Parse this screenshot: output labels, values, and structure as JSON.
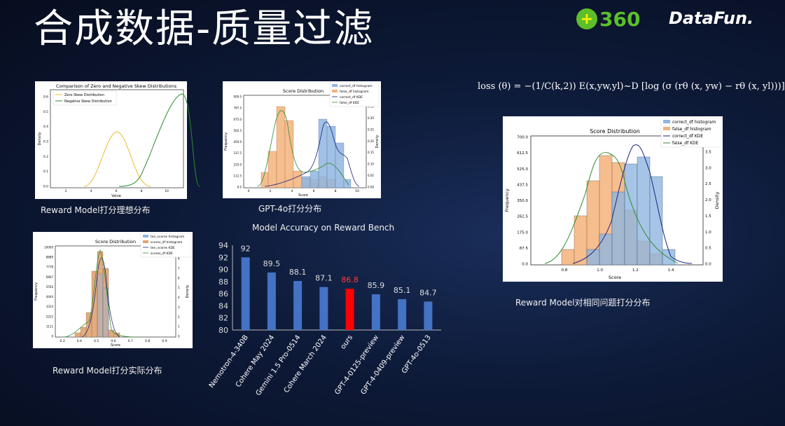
{
  "slide": {
    "title": "合成数据-质量过滤",
    "logo_360": "360",
    "logo_datafun": "DataFun.",
    "formula": "loss (θ) = −(1/C(k,2)) E(x,yw,yl)~D [log (σ (rθ (x, yw) − rθ (x, yl)))]"
  },
  "captions": {
    "ideal": "Reward Model打分理想分布",
    "gpt4o": "GPT-4o打分分布",
    "accuracy": "Model Accuracy on Reward Bench",
    "actual": "Reward Model打分实际分布",
    "same_question": "Reward Model对相同问题打分分布"
  },
  "skew_chart": {
    "title": "Comparison of Zero and Negative Skew Distributions",
    "xlabel": "Value",
    "ylabel": "Density",
    "legend": [
      "Zero Skew Distribution",
      "Negative Skew Distribution"
    ],
    "colors": [
      "#f0b82c",
      "#2e8b2e"
    ],
    "xticks": [
      "2",
      "4",
      "6",
      "8",
      "10"
    ],
    "yticks": [
      "0.0",
      "0.1",
      "0.2",
      "0.3",
      "0.4",
      "0.5",
      "0.6"
    ]
  },
  "gpt4o_chart": {
    "title": "Score Distribution",
    "xlabel": "Score",
    "ylabel": "Frequency",
    "y2label": "Density",
    "legend": [
      "correct_df histogram",
      "false_df histogram",
      "correct_df KDE",
      "false_df KDE"
    ],
    "yticks": [
      "0.0",
      "112.5",
      "225.0",
      "337.5",
      "450.0",
      "562.5",
      "675.0",
      "787.5",
      "900.0"
    ],
    "y2ticks": [
      "0.00",
      "0.05",
      "0.10",
      "0.15",
      "0.20",
      "0.25",
      "0.30",
      "0.35"
    ],
    "xticks": [
      "0",
      "2",
      "4",
      "6",
      "8",
      "10"
    ]
  },
  "actual_chart": {
    "title": "Score Distribution",
    "xlabel": "Score",
    "ylabel": "Frequency",
    "y2label": "Density",
    "legend": [
      "ten_scores histogram",
      "scores_df histogram",
      "ten_scores KDE",
      "scores_df KDE"
    ],
    "yticks": [
      "0",
      "1111",
      "2222",
      "3333",
      "4444",
      "5556",
      "6667",
      "7778",
      "8889",
      "10000"
    ],
    "y2ticks": [
      "0",
      "1",
      "2",
      "3",
      "4",
      "5",
      "6",
      "7",
      "8"
    ],
    "xticks": [
      "0.3",
      "0.4",
      "0.5",
      "0.6",
      "0.7",
      "0.8",
      "0.9"
    ]
  },
  "same_chart": {
    "title": "Score Distribution",
    "xlabel": "Score",
    "ylabel": "Frequency",
    "y2label": "Density",
    "legend": [
      "correct_df histogram",
      "false_df histogram",
      "correct_df KDE",
      "false_df KDE"
    ],
    "yticks": [
      "0.0",
      "87.5",
      "175.0",
      "262.5",
      "350.0",
      "437.5",
      "525.0",
      "612.5",
      "700.0"
    ],
    "y2ticks": [
      "0.0",
      "0.5",
      "1.0",
      "1.5",
      "2.0",
      "2.5",
      "3.0",
      "3.5"
    ],
    "xticks": [
      "0.8",
      "1.0",
      "1.2",
      "1.4"
    ]
  },
  "chart_data": {
    "type": "bar",
    "title": "",
    "categories": [
      "Nemotron-4-340B",
      "Cohere May 2024",
      "Gemini 1.5 Pro-0514",
      "Cohere March 2024",
      "ours",
      "GPT-4-0125-preview",
      "GPT-4-0409-preview",
      "GPT-4o-0513"
    ],
    "values": [
      92,
      89.5,
      88.1,
      87.1,
      86.8,
      85.9,
      85.1,
      84.7
    ],
    "value_labels": [
      "92",
      "89.5",
      "88.1",
      "87.1",
      "86.8",
      "85.9",
      "85.1",
      "84.7"
    ],
    "ylim": [
      80,
      94
    ],
    "yticks": [
      "80",
      "82",
      "84",
      "86",
      "88",
      "90",
      "92",
      "94"
    ],
    "colors": {
      "default": "#4472c4",
      "highlight": "#ff0000",
      "highlight_label": "#ff3b3b",
      "label": "#dddddd"
    },
    "highlight_index": 4
  }
}
